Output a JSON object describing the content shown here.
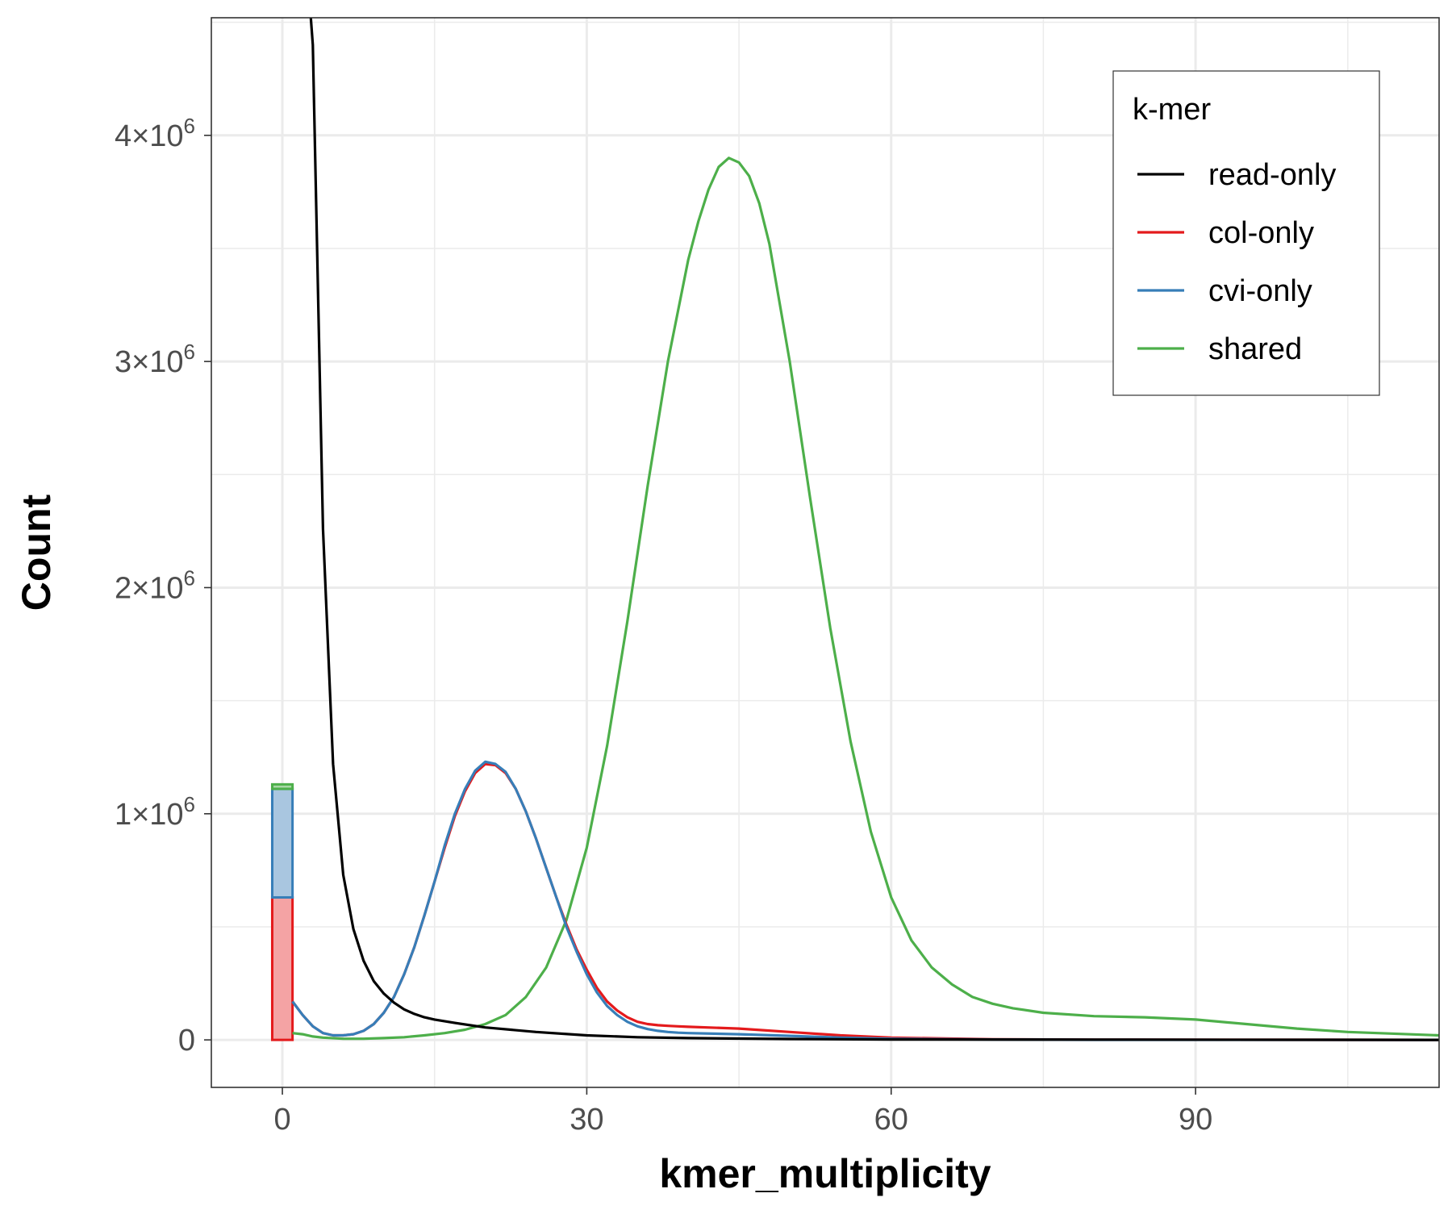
{
  "chart_data": {
    "type": "line",
    "xlabel": "kmer_multiplicity",
    "ylabel": "Count",
    "xlim": [
      -7,
      114
    ],
    "ylim": [
      -210000,
      4520000
    ],
    "x_ticks": [
      0,
      30,
      60,
      90
    ],
    "x_tick_labels": [
      "0",
      "30",
      "60",
      "90"
    ],
    "y_ticks": [
      0,
      1000000,
      2000000,
      3000000,
      4000000
    ],
    "y_tick_labels": [
      {
        "coef": "",
        "exp": "",
        "zero": "0"
      },
      {
        "coef": "1",
        "exp": "6",
        "zero": ""
      },
      {
        "coef": "2",
        "exp": "6",
        "zero": ""
      },
      {
        "coef": "3",
        "exp": "6",
        "zero": ""
      },
      {
        "coef": "4",
        "exp": "6",
        "zero": ""
      }
    ],
    "y_tick_times": "×10",
    "grid": true,
    "legend": {
      "title": "k-mer",
      "position": "top-right",
      "entries": [
        {
          "label": "read-only",
          "color": "#000000"
        },
        {
          "label": "col-only",
          "color": "#e41a1c"
        },
        {
          "label": "cvi-only",
          "color": "#377eb8"
        },
        {
          "label": "shared",
          "color": "#4daf4a"
        }
      ]
    },
    "bars": [
      {
        "series": "col-only",
        "x": 0,
        "width": 2,
        "y0": 0,
        "y1": 630000,
        "color": "#e41a1c",
        "fill": "#f4a3a4"
      },
      {
        "series": "cvi-only",
        "x": 0,
        "width": 2,
        "y0": 630000,
        "y1": 1110000,
        "color": "#377eb8",
        "fill": "#a9c6e0"
      },
      {
        "series": "shared",
        "x": 0,
        "width": 2,
        "y0": 1110000,
        "y1": 1130000,
        "color": "#4daf4a",
        "fill": "#a9d8a6"
      }
    ],
    "series": [
      {
        "name": "read-only",
        "color": "#000000",
        "x": [
          2.8,
          3,
          4,
          5,
          6,
          7,
          8,
          9,
          10,
          11,
          12,
          13,
          14,
          15,
          17,
          20,
          25,
          30,
          35,
          40,
          50,
          60,
          80,
          114
        ],
        "y": [
          4520000,
          4400000,
          2260000,
          1220000,
          730000,
          490000,
          350000,
          260000,
          205000,
          165000,
          135000,
          115000,
          100000,
          90000,
          75000,
          55000,
          35000,
          20000,
          12000,
          8000,
          4000,
          2000,
          1000,
          0
        ]
      },
      {
        "name": "col-only",
        "color": "#e41a1c",
        "x": [
          1,
          2,
          3,
          4,
          5,
          6,
          7,
          8,
          9,
          10,
          11,
          12,
          13,
          14,
          15,
          16,
          17,
          18,
          19,
          20,
          21,
          22,
          23,
          24,
          25,
          26,
          27,
          28,
          29,
          30,
          31,
          32,
          33,
          34,
          35,
          36,
          37,
          38,
          39,
          40,
          45,
          50,
          55,
          60,
          70,
          80,
          114
        ],
        "y": [
          170000,
          110000,
          60000,
          30000,
          20000,
          20000,
          25000,
          40000,
          70000,
          120000,
          190000,
          290000,
          410000,
          550000,
          700000,
          850000,
          990000,
          1100000,
          1180000,
          1220000,
          1215000,
          1180000,
          1110000,
          1010000,
          890000,
          760000,
          630000,
          510000,
          400000,
          310000,
          230000,
          170000,
          130000,
          100000,
          80000,
          70000,
          65000,
          62000,
          60000,
          58000,
          50000,
          35000,
          20000,
          10000,
          3000,
          1000,
          0
        ]
      },
      {
        "name": "cvi-only",
        "color": "#377eb8",
        "x": [
          1,
          2,
          3,
          4,
          5,
          6,
          7,
          8,
          9,
          10,
          11,
          12,
          13,
          14,
          15,
          16,
          17,
          18,
          19,
          20,
          21,
          22,
          23,
          24,
          25,
          26,
          27,
          28,
          29,
          30,
          31,
          32,
          33,
          34,
          35,
          36,
          37,
          38,
          39,
          40,
          45,
          50,
          55,
          60,
          70,
          80,
          114
        ],
        "y": [
          170000,
          110000,
          60000,
          30000,
          20000,
          20000,
          25000,
          40000,
          70000,
          120000,
          190000,
          290000,
          410000,
          550000,
          700000,
          860000,
          1000000,
          1110000,
          1190000,
          1230000,
          1220000,
          1185000,
          1110000,
          1010000,
          890000,
          760000,
          630000,
          500000,
          390000,
          290000,
          210000,
          150000,
          110000,
          80000,
          60000,
          48000,
          40000,
          35000,
          32000,
          30000,
          25000,
          18000,
          10000,
          5000,
          2000,
          500,
          0
        ]
      },
      {
        "name": "shared",
        "color": "#4daf4a",
        "x": [
          1,
          2,
          3,
          4,
          6,
          8,
          10,
          12,
          14,
          16,
          18,
          20,
          22,
          24,
          26,
          28,
          30,
          32,
          34,
          36,
          38,
          40,
          41,
          42,
          43,
          44,
          45,
          46,
          47,
          48,
          50,
          52,
          54,
          56,
          58,
          60,
          62,
          64,
          66,
          68,
          70,
          72,
          75,
          80,
          85,
          90,
          95,
          100,
          105,
          114
        ],
        "y": [
          30000,
          25000,
          15000,
          10000,
          5000,
          5000,
          8000,
          12000,
          20000,
          30000,
          45000,
          70000,
          110000,
          190000,
          320000,
          530000,
          850000,
          1300000,
          1850000,
          2450000,
          3000000,
          3450000,
          3620000,
          3760000,
          3860000,
          3900000,
          3880000,
          3820000,
          3700000,
          3520000,
          3000000,
          2400000,
          1820000,
          1320000,
          920000,
          630000,
          440000,
          320000,
          245000,
          190000,
          160000,
          140000,
          120000,
          105000,
          100000,
          90000,
          70000,
          50000,
          35000,
          20000
        ]
      }
    ]
  }
}
